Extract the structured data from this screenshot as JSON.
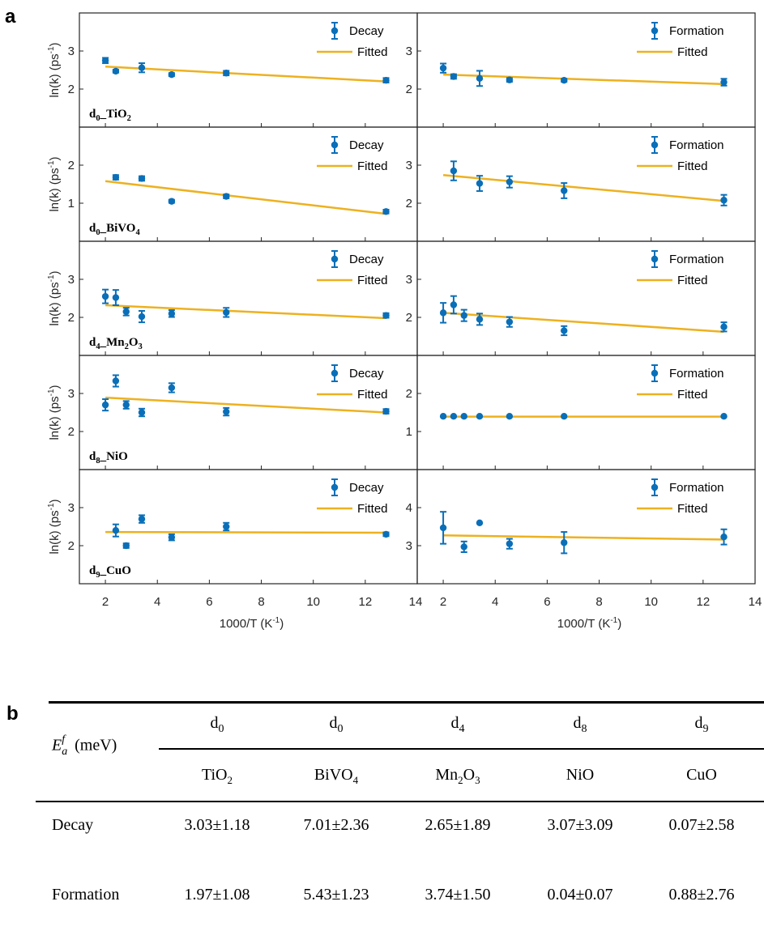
{
  "figure": {
    "panel_a_label": "a",
    "panel_b_label": "b"
  },
  "chart_data": [
    {
      "type": "scatter",
      "material_label": [
        "d",
        "0",
        "_TiO",
        "2",
        ""
      ],
      "column": "Decay",
      "legend": [
        "Decay",
        "Fitted"
      ],
      "ylabel": "ln(k) (ps-1)",
      "xlabel": "1000/T (K-1)",
      "xlim": [
        1,
        14
      ],
      "ylim": [
        1,
        4
      ],
      "yticks": [
        2,
        3
      ],
      "x": [
        2.0,
        2.4,
        3.4,
        4.55,
        6.65,
        12.8
      ],
      "y": [
        2.75,
        2.47,
        2.56,
        2.38,
        2.42,
        2.23
      ],
      "yerr": [
        0.07,
        0.04,
        0.12,
        0.04,
        0.06,
        0.06
      ],
      "fit": [
        [
          2.0,
          2.59
        ],
        [
          12.8,
          2.2
        ]
      ]
    },
    {
      "type": "scatter",
      "column": "Formation",
      "legend": [
        "Formation",
        "Fitted"
      ],
      "xlabel": "1000/T (K-1)",
      "xlim": [
        1,
        14
      ],
      "ylim": [
        1,
        4
      ],
      "yticks": [
        2,
        3
      ],
      "x": [
        2.0,
        2.4,
        3.4,
        4.55,
        6.65,
        12.8
      ],
      "y": [
        2.55,
        2.33,
        2.28,
        2.24,
        2.23,
        2.18
      ],
      "yerr": [
        0.12,
        0.06,
        0.2,
        0.05,
        0.04,
        0.09
      ],
      "fit": [
        [
          2.0,
          2.38
        ],
        [
          12.8,
          2.13
        ]
      ]
    },
    {
      "type": "scatter",
      "material_label": [
        "d",
        "0",
        "_BiVO",
        "4",
        ""
      ],
      "column": "Decay",
      "legend": [
        "Decay",
        "Fitted"
      ],
      "ylabel": "ln(k) (ps-1)",
      "xlabel": "1000/T (K-1)",
      "xlim": [
        1,
        14
      ],
      "ylim": [
        0,
        3
      ],
      "yticks": [
        1,
        2
      ],
      "x": [
        2.4,
        3.4,
        4.55,
        6.65,
        12.8
      ],
      "y": [
        1.68,
        1.65,
        1.05,
        1.18,
        0.78
      ],
      "yerr": [
        0.06,
        0.06,
        0.04,
        0.05,
        0.05
      ],
      "fit": [
        [
          2.0,
          1.58
        ],
        [
          12.8,
          0.72
        ]
      ]
    },
    {
      "type": "scatter",
      "column": "Formation",
      "legend": [
        "Formation",
        "Fitted"
      ],
      "xlabel": "1000/T (K-1)",
      "xlim": [
        1,
        14
      ],
      "ylim": [
        1,
        4
      ],
      "yticks": [
        2,
        3
      ],
      "x": [
        2.4,
        3.4,
        4.55,
        6.65,
        12.8
      ],
      "y": [
        2.85,
        2.52,
        2.56,
        2.33,
        2.08
      ],
      "yerr": [
        0.25,
        0.2,
        0.15,
        0.2,
        0.14
      ],
      "fit": [
        [
          2.0,
          2.74
        ],
        [
          12.8,
          2.06
        ]
      ]
    },
    {
      "type": "scatter",
      "material_label": [
        "d",
        "4",
        "_Mn",
        "2",
        "O",
        "3",
        ""
      ],
      "column": "Decay",
      "legend": [
        "Decay",
        "Fitted"
      ],
      "ylabel": "ln(k) (ps-1)",
      "xlabel": "1000/T (K-1)",
      "xlim": [
        1,
        14
      ],
      "ylim": [
        1,
        4
      ],
      "yticks": [
        2,
        3
      ],
      "x": [
        2.0,
        2.4,
        2.8,
        3.4,
        4.55,
        6.65,
        12.8
      ],
      "y": [
        2.55,
        2.52,
        2.15,
        2.02,
        2.1,
        2.13,
        2.05
      ],
      "yerr": [
        0.18,
        0.2,
        0.1,
        0.15,
        0.09,
        0.12,
        0.06
      ],
      "fit": [
        [
          2.0,
          2.32
        ],
        [
          12.8,
          1.98
        ]
      ]
    },
    {
      "type": "scatter",
      "column": "Formation",
      "legend": [
        "Formation",
        "Fitted"
      ],
      "xlabel": "1000/T (K-1)",
      "xlim": [
        1,
        14
      ],
      "ylim": [
        1,
        4
      ],
      "yticks": [
        2,
        3
      ],
      "x": [
        2.0,
        2.4,
        2.8,
        3.4,
        4.55,
        6.65,
        12.8
      ],
      "y": [
        2.12,
        2.33,
        2.05,
        1.95,
        1.88,
        1.65,
        1.75
      ],
      "yerr": [
        0.26,
        0.23,
        0.15,
        0.15,
        0.13,
        0.12,
        0.12
      ],
      "fit": [
        [
          2.0,
          2.12
        ],
        [
          12.8,
          1.62
        ]
      ]
    },
    {
      "type": "scatter",
      "material_label": [
        "d",
        "8",
        "_NiO"
      ],
      "column": "Decay",
      "legend": [
        "Decay",
        "Fitted"
      ],
      "ylabel": "ln(k) (ps-1)",
      "xlabel": "1000/T (K-1)",
      "xlim": [
        1,
        14
      ],
      "ylim": [
        1,
        4
      ],
      "yticks": [
        2,
        3
      ],
      "x": [
        2.0,
        2.4,
        2.8,
        3.4,
        4.55,
        6.65,
        12.8
      ],
      "y": [
        2.7,
        3.33,
        2.7,
        2.5,
        3.15,
        2.52,
        2.53
      ],
      "yerr": [
        0.15,
        0.15,
        0.1,
        0.1,
        0.12,
        0.1,
        0.06
      ],
      "fit": [
        [
          2.0,
          2.89
        ],
        [
          12.8,
          2.5
        ]
      ]
    },
    {
      "type": "scatter",
      "column": "Formation",
      "legend": [
        "Formation",
        "Fitted"
      ],
      "xlabel": "1000/T (K-1)",
      "xlim": [
        1,
        14
      ],
      "ylim": [
        0,
        3
      ],
      "yticks": [
        1,
        2
      ],
      "x": [
        2.0,
        2.4,
        2.8,
        3.4,
        4.55,
        6.65,
        12.8
      ],
      "y": [
        1.4,
        1.4,
        1.4,
        1.4,
        1.4,
        1.4,
        1.4
      ],
      "yerr": [
        0,
        0,
        0,
        0,
        0,
        0,
        0
      ],
      "fit": [
        [
          2.0,
          1.39
        ],
        [
          12.8,
          1.39
        ]
      ]
    },
    {
      "type": "scatter",
      "material_label": [
        "d",
        "9",
        "_CuO"
      ],
      "column": "Decay",
      "legend": [
        "Decay",
        "Fitted"
      ],
      "ylabel": "ln(k) (ps-1)",
      "xlabel": "1000/T (K-1)",
      "xlim": [
        1,
        14
      ],
      "ylim": [
        1,
        4
      ],
      "yticks": [
        2,
        3
      ],
      "x": [
        2.4,
        2.8,
        3.4,
        4.55,
        6.65,
        12.8
      ],
      "y": [
        2.4,
        2.0,
        2.7,
        2.22,
        2.5,
        2.3
      ],
      "yerr": [
        0.16,
        0.06,
        0.1,
        0.08,
        0.1,
        0.05
      ],
      "fit": [
        [
          2.0,
          2.36
        ],
        [
          12.8,
          2.34
        ]
      ]
    },
    {
      "type": "scatter",
      "column": "Formation",
      "legend": [
        "Formation",
        "Fitted"
      ],
      "xlabel": "1000/T (K-1)",
      "xlim": [
        1,
        14
      ],
      "ylim": [
        2,
        5
      ],
      "yticks": [
        3,
        4
      ],
      "x": [
        2.0,
        2.8,
        3.4,
        4.55,
        6.65,
        12.8
      ],
      "y": [
        3.47,
        2.97,
        3.6,
        3.05,
        3.08,
        3.23
      ],
      "yerr": [
        0.42,
        0.14,
        0,
        0.13,
        0.28,
        0.2
      ],
      "fit": [
        [
          2.0,
          3.27
        ],
        [
          12.8,
          3.16
        ]
      ]
    }
  ],
  "xticks": [
    2,
    4,
    6,
    8,
    10,
    12,
    14
  ],
  "table": {
    "header_label": "(meV)",
    "groups": [
      "d",
      "d",
      "d",
      "d",
      "d"
    ],
    "group_subs": [
      "0",
      "0",
      "4",
      "8",
      "9"
    ],
    "materials": [
      [
        "TiO",
        "2",
        ""
      ],
      [
        "BiVO",
        "4",
        ""
      ],
      [
        "Mn",
        "2",
        "O",
        "3",
        ""
      ],
      [
        "NiO"
      ],
      [
        "CuO"
      ]
    ],
    "rows": [
      {
        "label": "Decay",
        "values": [
          "3.03±1.18",
          "7.01±2.36",
          "2.65±1.89",
          "3.07±3.09",
          "0.07±2.58"
        ]
      },
      {
        "label": "Formation",
        "values": [
          "1.97±1.08",
          "5.43±1.23",
          "3.74±1.50",
          "0.04±0.07",
          "0.88±2.76"
        ]
      }
    ]
  }
}
